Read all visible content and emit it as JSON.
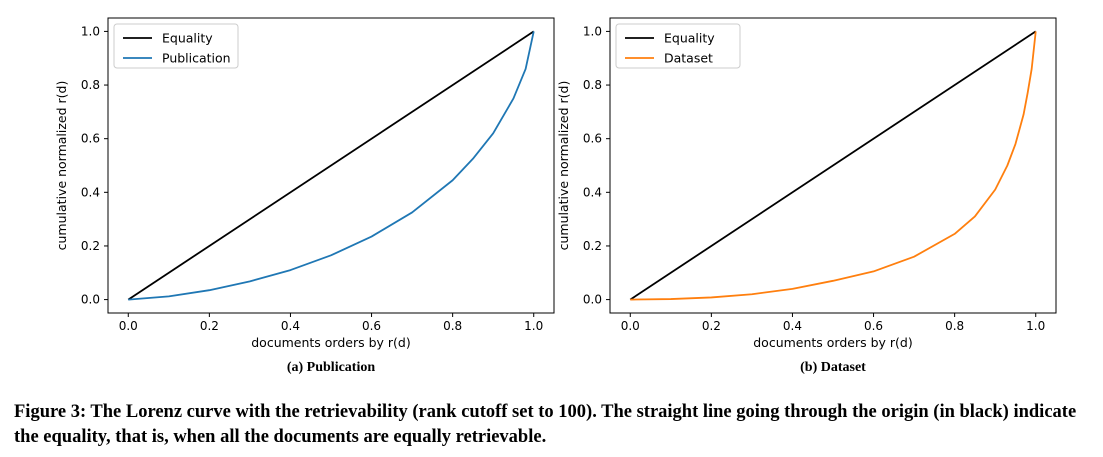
{
  "caption": "Figure 3: The Lorenz curve with the retrievability (rank cutoff set to 100). The straight line going through the origin (in black) indicate the equality, that is, when all the documents are equally retrievable.",
  "chart_data": [
    {
      "type": "line",
      "subcaption": "(a) Publication",
      "xlabel": "documents orders by r(d)",
      "ylabel": "cumulative normalized r(d)",
      "xlim": [
        -0.05,
        1.05
      ],
      "ylim": [
        -0.05,
        1.05
      ],
      "xticks": [
        "0.0",
        "0.2",
        "0.4",
        "0.6",
        "0.8",
        "1.0"
      ],
      "yticks": [
        "0.0",
        "0.2",
        "0.4",
        "0.6",
        "0.8",
        "1.0"
      ],
      "grid": false,
      "legend": "top-left",
      "series": [
        {
          "name": "Equality",
          "color": "#000000",
          "x": [
            0,
            1
          ],
          "y": [
            0,
            1
          ]
        },
        {
          "name": "Publication",
          "color": "#1f77b4",
          "x": [
            0,
            0.1,
            0.2,
            0.3,
            0.4,
            0.5,
            0.6,
            0.7,
            0.8,
            0.85,
            0.9,
            0.95,
            0.98,
            1.0
          ],
          "y": [
            0,
            0.012,
            0.035,
            0.068,
            0.11,
            0.165,
            0.235,
            0.325,
            0.445,
            0.525,
            0.62,
            0.75,
            0.86,
            1.0
          ]
        }
      ]
    },
    {
      "type": "line",
      "subcaption": "(b) Dataset",
      "xlabel": "documents orders by r(d)",
      "ylabel": "cumulative normalized r(d)",
      "xlim": [
        -0.05,
        1.05
      ],
      "ylim": [
        -0.05,
        1.05
      ],
      "xticks": [
        "0.0",
        "0.2",
        "0.4",
        "0.6",
        "0.8",
        "1.0"
      ],
      "yticks": [
        "0.0",
        "0.2",
        "0.4",
        "0.6",
        "0.8",
        "1.0"
      ],
      "grid": false,
      "legend": "top-left",
      "series": [
        {
          "name": "Equality",
          "color": "#000000",
          "x": [
            0,
            1
          ],
          "y": [
            0,
            1
          ]
        },
        {
          "name": "Dataset",
          "color": "#ff7f0e",
          "x": [
            0,
            0.1,
            0.2,
            0.3,
            0.4,
            0.5,
            0.6,
            0.7,
            0.8,
            0.85,
            0.9,
            0.93,
            0.95,
            0.97,
            0.98,
            0.99,
            1.0
          ],
          "y": [
            0,
            0.002,
            0.008,
            0.02,
            0.04,
            0.07,
            0.105,
            0.16,
            0.245,
            0.31,
            0.41,
            0.5,
            0.58,
            0.69,
            0.77,
            0.86,
            1.0
          ]
        }
      ]
    }
  ]
}
